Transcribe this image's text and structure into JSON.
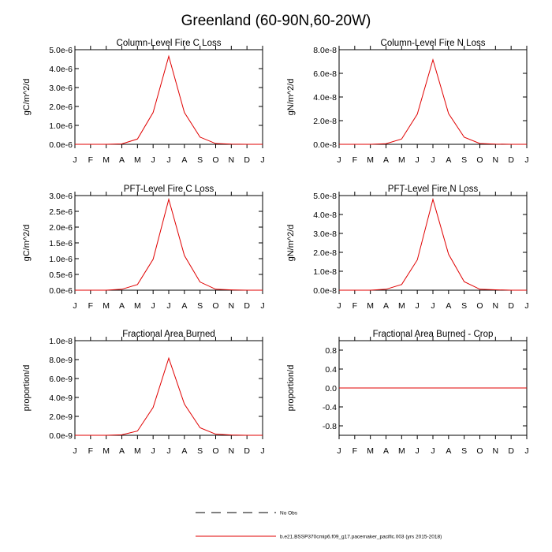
{
  "title": "Greenland (60-90N,60-20W)",
  "colors": {
    "series": "#e00000",
    "axis": "#000000",
    "background": "#ffffff"
  },
  "legend": {
    "obs_label": "No Obs",
    "model_label": "b.e21.BSSP370cmip6.f09_g17.pacemaker_pacific.003 (yrs 2015-2018)"
  },
  "chart_data": [
    {
      "type": "line",
      "title": "Column-Level Fire C Loss",
      "ylabel": "gC/m^2/d",
      "xlabel": "",
      "categories": [
        "J",
        "F",
        "M",
        "A",
        "M",
        "J",
        "J",
        "A",
        "S",
        "O",
        "N",
        "D",
        "J"
      ],
      "ylim": [
        0,
        5e-06
      ],
      "yticks": [
        0,
        1e-06,
        2e-06,
        3e-06,
        4e-06,
        5e-06
      ],
      "ytick_labels": [
        "0.0e-6",
        "1.0e-6",
        "2.0e-6",
        "3.0e-6",
        "4.0e-6",
        "5.0e-6"
      ],
      "series": [
        {
          "name": "b.e21.BSSP370cmip6.f09_g17.pacemaker_pacific.003 (yrs 2015-2018)",
          "values": [
            0,
            0,
            0,
            2e-08,
            2.8e-07,
            1.68e-06,
            4.65e-06,
            1.68e-06,
            3.8e-07,
            4e-08,
            1e-08,
            0,
            0
          ]
        }
      ]
    },
    {
      "type": "line",
      "title": "Column-Level Fire N Loss",
      "ylabel": "gN/m^2/d",
      "xlabel": "",
      "categories": [
        "J",
        "F",
        "M",
        "A",
        "M",
        "J",
        "J",
        "A",
        "S",
        "O",
        "N",
        "D",
        "J"
      ],
      "ylim": [
        0,
        8e-08
      ],
      "yticks": [
        0,
        2e-08,
        4e-08,
        6e-08,
        8e-08
      ],
      "ytick_labels": [
        "0.0e-8",
        "2.0e-8",
        "4.0e-8",
        "6.0e-8",
        "8.0e-8"
      ],
      "series": [
        {
          "name": "b.e21.BSSP370cmip6.f09_g17.pacemaker_pacific.003 (yrs 2015-2018)",
          "values": [
            0,
            0,
            0,
            5e-10,
            4.5e-09,
            2.55e-08,
            7.15e-08,
            2.6e-08,
            6e-09,
            7e-10,
            2e-10,
            0,
            0
          ]
        }
      ]
    },
    {
      "type": "line",
      "title": "PFT-Level Fire C Loss",
      "ylabel": "gC/m^2/d",
      "xlabel": "",
      "categories": [
        "J",
        "F",
        "M",
        "A",
        "M",
        "J",
        "J",
        "A",
        "S",
        "O",
        "N",
        "D",
        "J"
      ],
      "ylim": [
        0,
        3e-06
      ],
      "yticks": [
        0,
        5e-07,
        1e-06,
        1.5e-06,
        2e-06,
        2.5e-06,
        3e-06
      ],
      "ytick_labels": [
        "0.0e-6",
        "0.5e-6",
        "1.0e-6",
        "1.5e-6",
        "2.0e-6",
        "2.5e-6",
        "3.0e-6"
      ],
      "series": [
        {
          "name": "b.e21.BSSP370cmip6.f09_g17.pacemaker_pacific.003 (yrs 2015-2018)",
          "values": [
            0,
            0,
            0,
            3e-08,
            1.8e-07,
            9.8e-07,
            2.88e-06,
            1.1e-06,
            2.6e-07,
            3e-08,
            1e-08,
            0,
            0
          ]
        }
      ]
    },
    {
      "type": "line",
      "title": "PFT-Level Fire N Loss",
      "ylabel": "gN/m^2/d",
      "xlabel": "",
      "categories": [
        "J",
        "F",
        "M",
        "A",
        "M",
        "J",
        "J",
        "A",
        "S",
        "O",
        "N",
        "D",
        "J"
      ],
      "ylim": [
        0,
        5e-08
      ],
      "yticks": [
        0,
        1e-08,
        2e-08,
        3e-08,
        4e-08,
        5e-08
      ],
      "ytick_labels": [
        "0.0e-8",
        "1.0e-8",
        "2.0e-8",
        "3.0e-8",
        "4.0e-8",
        "5.0e-8"
      ],
      "series": [
        {
          "name": "b.e21.BSSP370cmip6.f09_g17.pacemaker_pacific.003 (yrs 2015-2018)",
          "values": [
            0,
            0,
            0,
            5e-10,
            3e-09,
            1.6e-08,
            4.8e-08,
            1.9e-08,
            4.5e-09,
            5e-10,
            2e-10,
            0,
            0
          ]
        }
      ]
    },
    {
      "type": "line",
      "title": "Fractional Area Burned",
      "ylabel": "proportion/d",
      "xlabel": "",
      "categories": [
        "J",
        "F",
        "M",
        "A",
        "M",
        "J",
        "J",
        "A",
        "S",
        "O",
        "N",
        "D",
        "J"
      ],
      "ylim": [
        0,
        1e-08
      ],
      "yticks": [
        0,
        2e-09,
        4e-09,
        6e-09,
        8e-09,
        1e-08
      ],
      "ytick_labels": [
        "0.0e-9",
        "2.0e-9",
        "4.0e-9",
        "6.0e-9",
        "8.0e-9",
        "1.0e-8"
      ],
      "series": [
        {
          "name": "b.e21.BSSP370cmip6.f09_g17.pacemaker_pacific.003 (yrs 2015-2018)",
          "values": [
            0,
            0,
            0,
            5e-11,
            4.5e-10,
            2.95e-09,
            8.15e-09,
            3.3e-09,
            8e-10,
            1.2e-10,
            3e-11,
            0,
            0
          ]
        }
      ]
    },
    {
      "type": "line",
      "title": "Fractional Area Burned - Crop",
      "ylabel": "proportion/d",
      "xlabel": "",
      "categories": [
        "J",
        "F",
        "M",
        "A",
        "M",
        "J",
        "J",
        "A",
        "S",
        "O",
        "N",
        "D",
        "J"
      ],
      "ylim": [
        -1.0,
        1.0
      ],
      "yticks": [
        -0.8,
        -0.4,
        0,
        0.4,
        0.8
      ],
      "ytick_labels": [
        "-0.8",
        "-0.4",
        "0.0",
        "0.4",
        "0.8"
      ],
      "series": [
        {
          "name": "b.e21.BSSP370cmip6.f09_g17.pacemaker_pacific.003 (yrs 2015-2018)",
          "values": [
            0,
            0,
            0,
            0,
            0,
            0,
            0,
            0,
            0,
            0,
            0,
            0,
            0
          ]
        }
      ]
    }
  ]
}
